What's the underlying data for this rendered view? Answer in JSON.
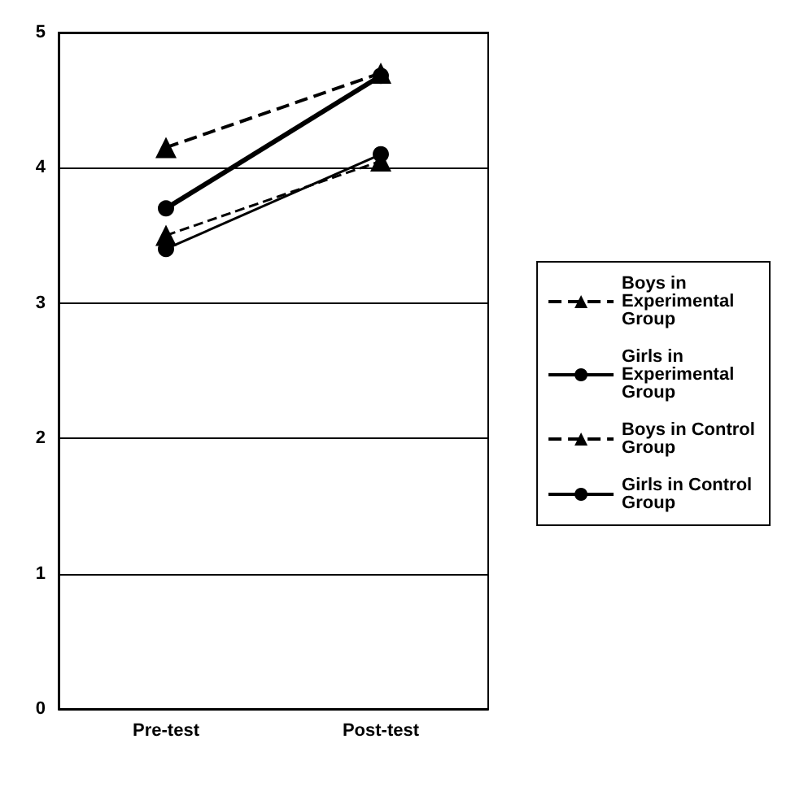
{
  "chart_data": {
    "type": "line",
    "categories": [
      "Pre-test",
      "Post-test"
    ],
    "series": [
      {
        "name": "Boys in Experimental Group",
        "color": "#000000",
        "values": [
          4.15,
          4.7
        ],
        "marker": "triangle",
        "line_style": "dashed"
      },
      {
        "name": "Girls in Experimental Group",
        "color": "#000000",
        "values": [
          3.7,
          4.68
        ],
        "marker": "circle",
        "line_style": "solid"
      },
      {
        "name": "Boys in Control Group",
        "color": "#000000",
        "values": [
          3.5,
          4.05
        ],
        "marker": "triangle",
        "line_style": "dashed"
      },
      {
        "name": "Girls in Control Group",
        "color": "#000000",
        "values": [
          3.4,
          4.1
        ],
        "marker": "circle",
        "line_style": "solid"
      }
    ],
    "ylim": [
      0,
      5
    ],
    "yticks": [
      0,
      1,
      2,
      3,
      4,
      5
    ],
    "grid": "y",
    "legend": "right"
  }
}
